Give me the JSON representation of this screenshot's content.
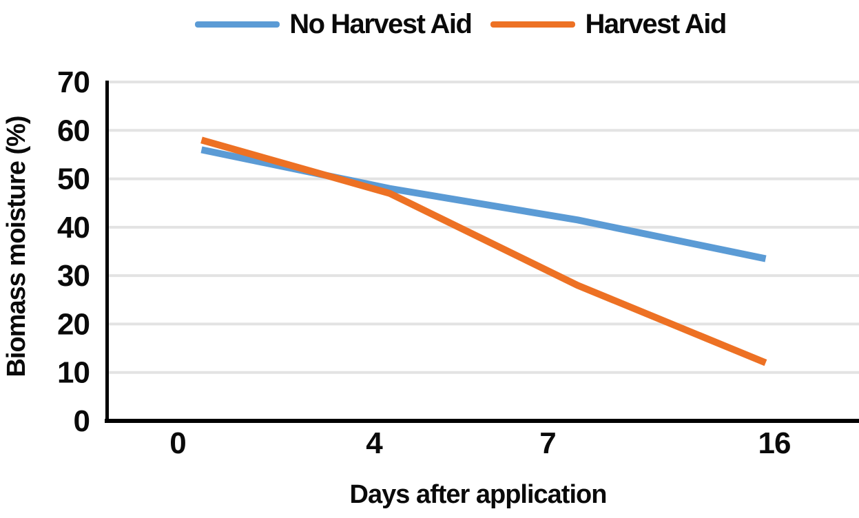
{
  "chart_data": {
    "type": "line",
    "title": "",
    "categories": [
      "0",
      "4",
      "7",
      "16"
    ],
    "x_values": [
      0,
      4,
      7,
      16
    ],
    "series": [
      {
        "name": "No Harvest Aid",
        "color": "#5B9BD5",
        "values": [
          56,
          48,
          41.5,
          33.5
        ]
      },
      {
        "name": "Harvest Aid",
        "color": "#ED7124",
        "values": [
          58,
          47,
          28,
          12
        ]
      }
    ],
    "xlabel": "Days after application",
    "ylabel": "Biomass moisture (%)",
    "ylim": [
      0,
      70
    ],
    "yticks": [
      0,
      10,
      20,
      30,
      40,
      50,
      60,
      70
    ],
    "grid": "horizontal-only",
    "gridline_color": "#E3E3E3",
    "axis_color": "#000000",
    "legend_position": "top-center",
    "x_axis_type": "category"
  }
}
